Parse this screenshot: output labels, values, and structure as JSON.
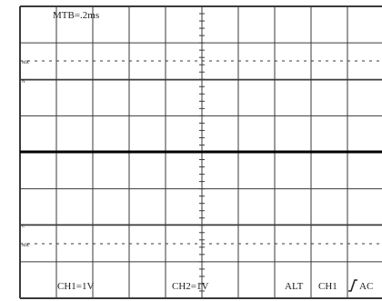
{
  "screen": {
    "grid_color": "#3a3a3a",
    "trace_color": "#000000",
    "divisions_x": 10,
    "divisions_y": 8
  },
  "readouts": {
    "timebase": "MTB=.2ms",
    "ch1_volts": "CH1=1V",
    "ch2_volts": "CH2=1V",
    "mode": "ALT",
    "trigger_source": "CH1",
    "trigger_slope_icon": "rising-edge-icon",
    "coupling": "AC"
  },
  "level_markers": {
    "upper_top": "MR",
    "upper_bottom": "N",
    "lower_top": "C",
    "lower_bottom": "MR"
  }
}
